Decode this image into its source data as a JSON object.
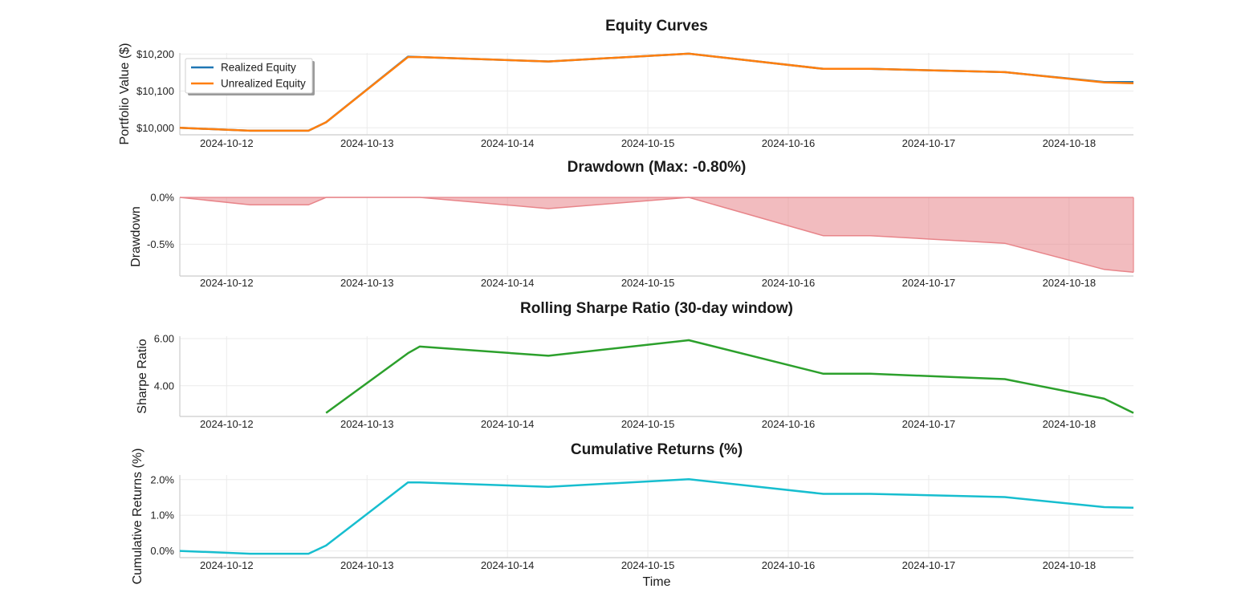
{
  "figure": {
    "xlabel": "Time"
  },
  "colors": {
    "realized": "#1f77b4",
    "unrealized": "#ff7f0e",
    "drawdown": "#e8858a",
    "sharpe": "#2ca02c",
    "cumret": "#17becf",
    "grid": "#ebebeb",
    "axis": "#cccccc"
  },
  "x_ticks": [
    "2024-10-12",
    "2024-10-13",
    "2024-10-14",
    "2024-10-15",
    "2024-10-16",
    "2024-10-17",
    "2024-10-18"
  ],
  "chart_data": [
    {
      "type": "line",
      "title": "Equity Curves",
      "ylabel": "Portfolio Value ($)",
      "xlim": [
        "2024-10-11T16:00",
        "2024-10-18T11:00"
      ],
      "ylim": [
        9981,
        10203
      ],
      "y_ticks": [
        10000,
        10100,
        10200
      ],
      "y_tick_labels": [
        "$10,000",
        "$10,100",
        "$10,200"
      ],
      "grid": true,
      "legend": "top-left",
      "x": [
        "2024-10-11T16:00",
        "2024-10-12T04:00",
        "2024-10-12T14:00",
        "2024-10-12T17:00",
        "2024-10-13T07:00",
        "2024-10-13T09:00",
        "2024-10-14T07:00",
        "2024-10-15T07:00",
        "2024-10-16T06:00",
        "2024-10-16T14:00",
        "2024-10-17T13:00",
        "2024-10-18T06:00",
        "2024-10-18T11:00"
      ],
      "series": [
        {
          "name": "Realized Equity",
          "color_key": "realized",
          "values": [
            10000,
            9992,
            9992,
            10015,
            10193,
            10192,
            10180,
            10201,
            10160,
            10160,
            10151,
            10124,
            10124
          ]
        },
        {
          "name": "Unrealized Equity",
          "color_key": "unrealized",
          "values": [
            10000,
            9992,
            9992,
            10015,
            10192,
            10192,
            10180,
            10201,
            10160,
            10160,
            10151,
            10123,
            10121
          ]
        }
      ]
    },
    {
      "type": "area",
      "title": "Drawdown (Max: -0.80%)",
      "ylabel": "Drawdown",
      "xlim": [
        "2024-10-11T16:00",
        "2024-10-18T11:00"
      ],
      "ylim": [
        -0.84,
        0.0
      ],
      "y_ticks": [
        0.0,
        -0.5
      ],
      "y_tick_labels": [
        "0.0%",
        "-0.5%"
      ],
      "grid": true,
      "x": [
        "2024-10-11T16:00",
        "2024-10-12T04:00",
        "2024-10-12T14:00",
        "2024-10-12T17:00",
        "2024-10-13T09:00",
        "2024-10-14T07:00",
        "2024-10-15T07:00",
        "2024-10-16T06:00",
        "2024-10-16T14:00",
        "2024-10-17T13:00",
        "2024-10-18T06:00",
        "2024-10-18T11:00"
      ],
      "series": [
        {
          "color_key": "drawdown",
          "values": [
            0.0,
            -0.08,
            -0.08,
            0.0,
            0.0,
            -0.12,
            0.0,
            -0.41,
            -0.41,
            -0.49,
            -0.77,
            -0.8
          ]
        }
      ]
    },
    {
      "type": "line",
      "title": "Rolling Sharpe Ratio (30-day window)",
      "ylabel": "Sharpe Ratio",
      "xlim": [
        "2024-10-11T16:00",
        "2024-10-18T11:00"
      ],
      "ylim": [
        2.7,
        6.1
      ],
      "y_ticks": [
        4.0,
        6.0
      ],
      "y_tick_labels": [
        "4.00",
        "6.00"
      ],
      "grid": true,
      "x": [
        "2024-10-12T17:00",
        "2024-10-13T07:00",
        "2024-10-13T09:00",
        "2024-10-14T07:00",
        "2024-10-15T07:00",
        "2024-10-16T06:00",
        "2024-10-16T14:00",
        "2024-10-17T13:00",
        "2024-10-18T06:00",
        "2024-10-18T11:00"
      ],
      "series": [
        {
          "color_key": "sharpe",
          "values": [
            2.85,
            5.38,
            5.66,
            5.27,
            5.93,
            4.51,
            4.51,
            4.28,
            3.45,
            2.85
          ]
        }
      ]
    },
    {
      "type": "line",
      "title": "Cumulative Returns (%)",
      "ylabel": "Cumulative Returns (%)",
      "xlim": [
        "2024-10-11T16:00",
        "2024-10-18T11:00"
      ],
      "ylim": [
        -0.19,
        2.13
      ],
      "y_ticks": [
        0.0,
        1.0,
        2.0
      ],
      "y_tick_labels": [
        "0.0%",
        "1.0%",
        "2.0%"
      ],
      "grid": true,
      "x": [
        "2024-10-11T16:00",
        "2024-10-12T04:00",
        "2024-10-12T14:00",
        "2024-10-12T17:00",
        "2024-10-13T07:00",
        "2024-10-13T09:00",
        "2024-10-14T07:00",
        "2024-10-15T07:00",
        "2024-10-16T06:00",
        "2024-10-16T14:00",
        "2024-10-17T13:00",
        "2024-10-18T06:00",
        "2024-10-18T11:00"
      ],
      "series": [
        {
          "color_key": "cumret",
          "values": [
            0.0,
            -0.08,
            -0.08,
            0.15,
            1.92,
            1.92,
            1.8,
            2.01,
            1.6,
            1.6,
            1.51,
            1.23,
            1.21
          ]
        }
      ]
    }
  ]
}
